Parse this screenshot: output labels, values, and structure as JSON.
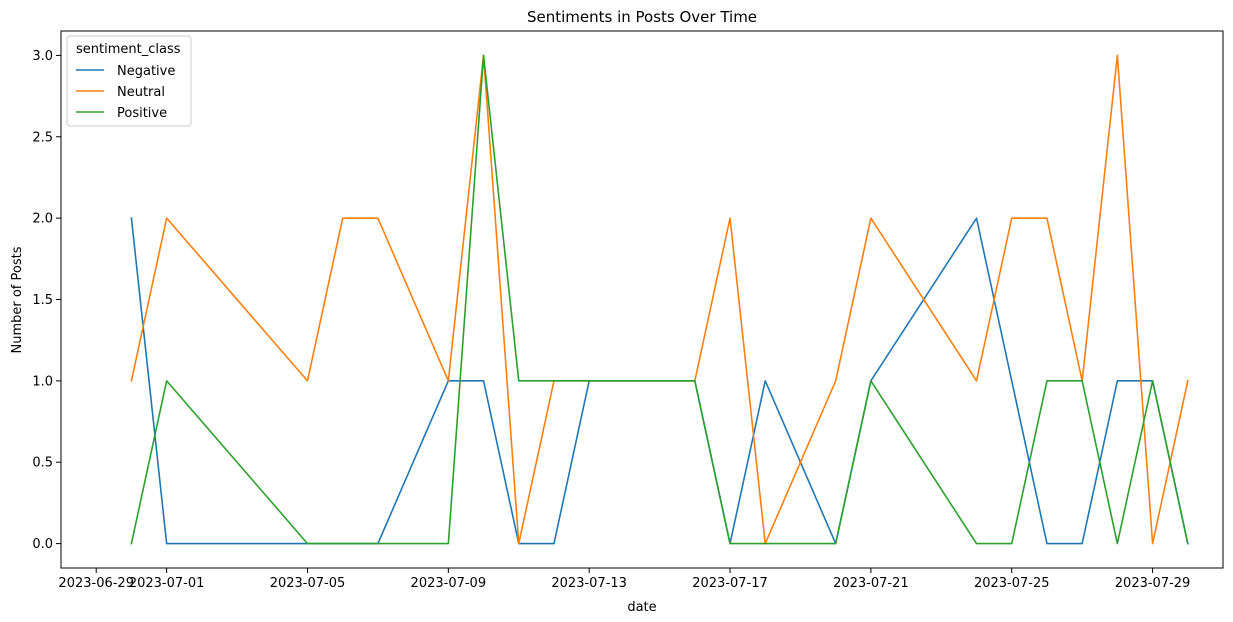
{
  "chart_data": {
    "type": "line",
    "title": "Sentiments in Posts Over Time",
    "xlabel": "date",
    "ylabel": "Number of Posts",
    "x_ticks": [
      "2023-06-29",
      "2023-07-01",
      "2023-07-05",
      "2023-07-09",
      "2023-07-13",
      "2023-07-17",
      "2023-07-21",
      "2023-07-25",
      "2023-07-29"
    ],
    "x_range": [
      "2023-06-28",
      "2023-07-31"
    ],
    "y_ticks": [
      "0.0",
      "0.5",
      "1.0",
      "1.5",
      "2.0",
      "2.5",
      "3.0"
    ],
    "ylim": [
      -0.15,
      3.15
    ],
    "grid": false,
    "legend": {
      "title": "sentiment_class",
      "placement": "top-left"
    },
    "series": [
      {
        "name": "Negative",
        "color": "#1f77b4",
        "points": [
          [
            "2023-06-30",
            2
          ],
          [
            "2023-07-01",
            0
          ],
          [
            "2023-07-05",
            0
          ],
          [
            "2023-07-06",
            0
          ],
          [
            "2023-07-07",
            0
          ],
          [
            "2023-07-09",
            1
          ],
          [
            "2023-07-10",
            1
          ],
          [
            "2023-07-11",
            0
          ],
          [
            "2023-07-12",
            0
          ],
          [
            "2023-07-13",
            1
          ],
          [
            "2023-07-16",
            1
          ],
          [
            "2023-07-17",
            0
          ],
          [
            "2023-07-18",
            1
          ],
          [
            "2023-07-20",
            0
          ],
          [
            "2023-07-21",
            1
          ],
          [
            "2023-07-24",
            2
          ],
          [
            "2023-07-25",
            1
          ],
          [
            "2023-07-26",
            0
          ],
          [
            "2023-07-27",
            0
          ],
          [
            "2023-07-28",
            1
          ],
          [
            "2023-07-29",
            1
          ],
          [
            "2023-07-30",
            0
          ]
        ]
      },
      {
        "name": "Neutral",
        "color": "#ff7f0e",
        "points": [
          [
            "2023-06-30",
            1
          ],
          [
            "2023-07-01",
            2
          ],
          [
            "2023-07-05",
            1
          ],
          [
            "2023-07-06",
            2
          ],
          [
            "2023-07-07",
            2
          ],
          [
            "2023-07-09",
            1
          ],
          [
            "2023-07-10",
            3
          ],
          [
            "2023-07-11",
            0
          ],
          [
            "2023-07-12",
            1
          ],
          [
            "2023-07-13",
            1
          ],
          [
            "2023-07-16",
            1
          ],
          [
            "2023-07-17",
            2
          ],
          [
            "2023-07-18",
            0
          ],
          [
            "2023-07-20",
            1
          ],
          [
            "2023-07-21",
            2
          ],
          [
            "2023-07-24",
            1
          ],
          [
            "2023-07-25",
            2
          ],
          [
            "2023-07-26",
            2
          ],
          [
            "2023-07-27",
            1
          ],
          [
            "2023-07-28",
            3
          ],
          [
            "2023-07-29",
            0
          ],
          [
            "2023-07-30",
            1
          ]
        ]
      },
      {
        "name": "Positive",
        "color": "#2ca02c",
        "points": [
          [
            "2023-06-30",
            0
          ],
          [
            "2023-07-01",
            1
          ],
          [
            "2023-07-05",
            0
          ],
          [
            "2023-07-06",
            0
          ],
          [
            "2023-07-07",
            0
          ],
          [
            "2023-07-09",
            0
          ],
          [
            "2023-07-10",
            3
          ],
          [
            "2023-07-11",
            1
          ],
          [
            "2023-07-12",
            1
          ],
          [
            "2023-07-13",
            1
          ],
          [
            "2023-07-16",
            1
          ],
          [
            "2023-07-17",
            0
          ],
          [
            "2023-07-18",
            0
          ],
          [
            "2023-07-20",
            0
          ],
          [
            "2023-07-21",
            1
          ],
          [
            "2023-07-24",
            0
          ],
          [
            "2023-07-25",
            0
          ],
          [
            "2023-07-26",
            1
          ],
          [
            "2023-07-27",
            1
          ],
          [
            "2023-07-28",
            0
          ],
          [
            "2023-07-29",
            1
          ],
          [
            "2023-07-30",
            0
          ]
        ]
      }
    ]
  }
}
